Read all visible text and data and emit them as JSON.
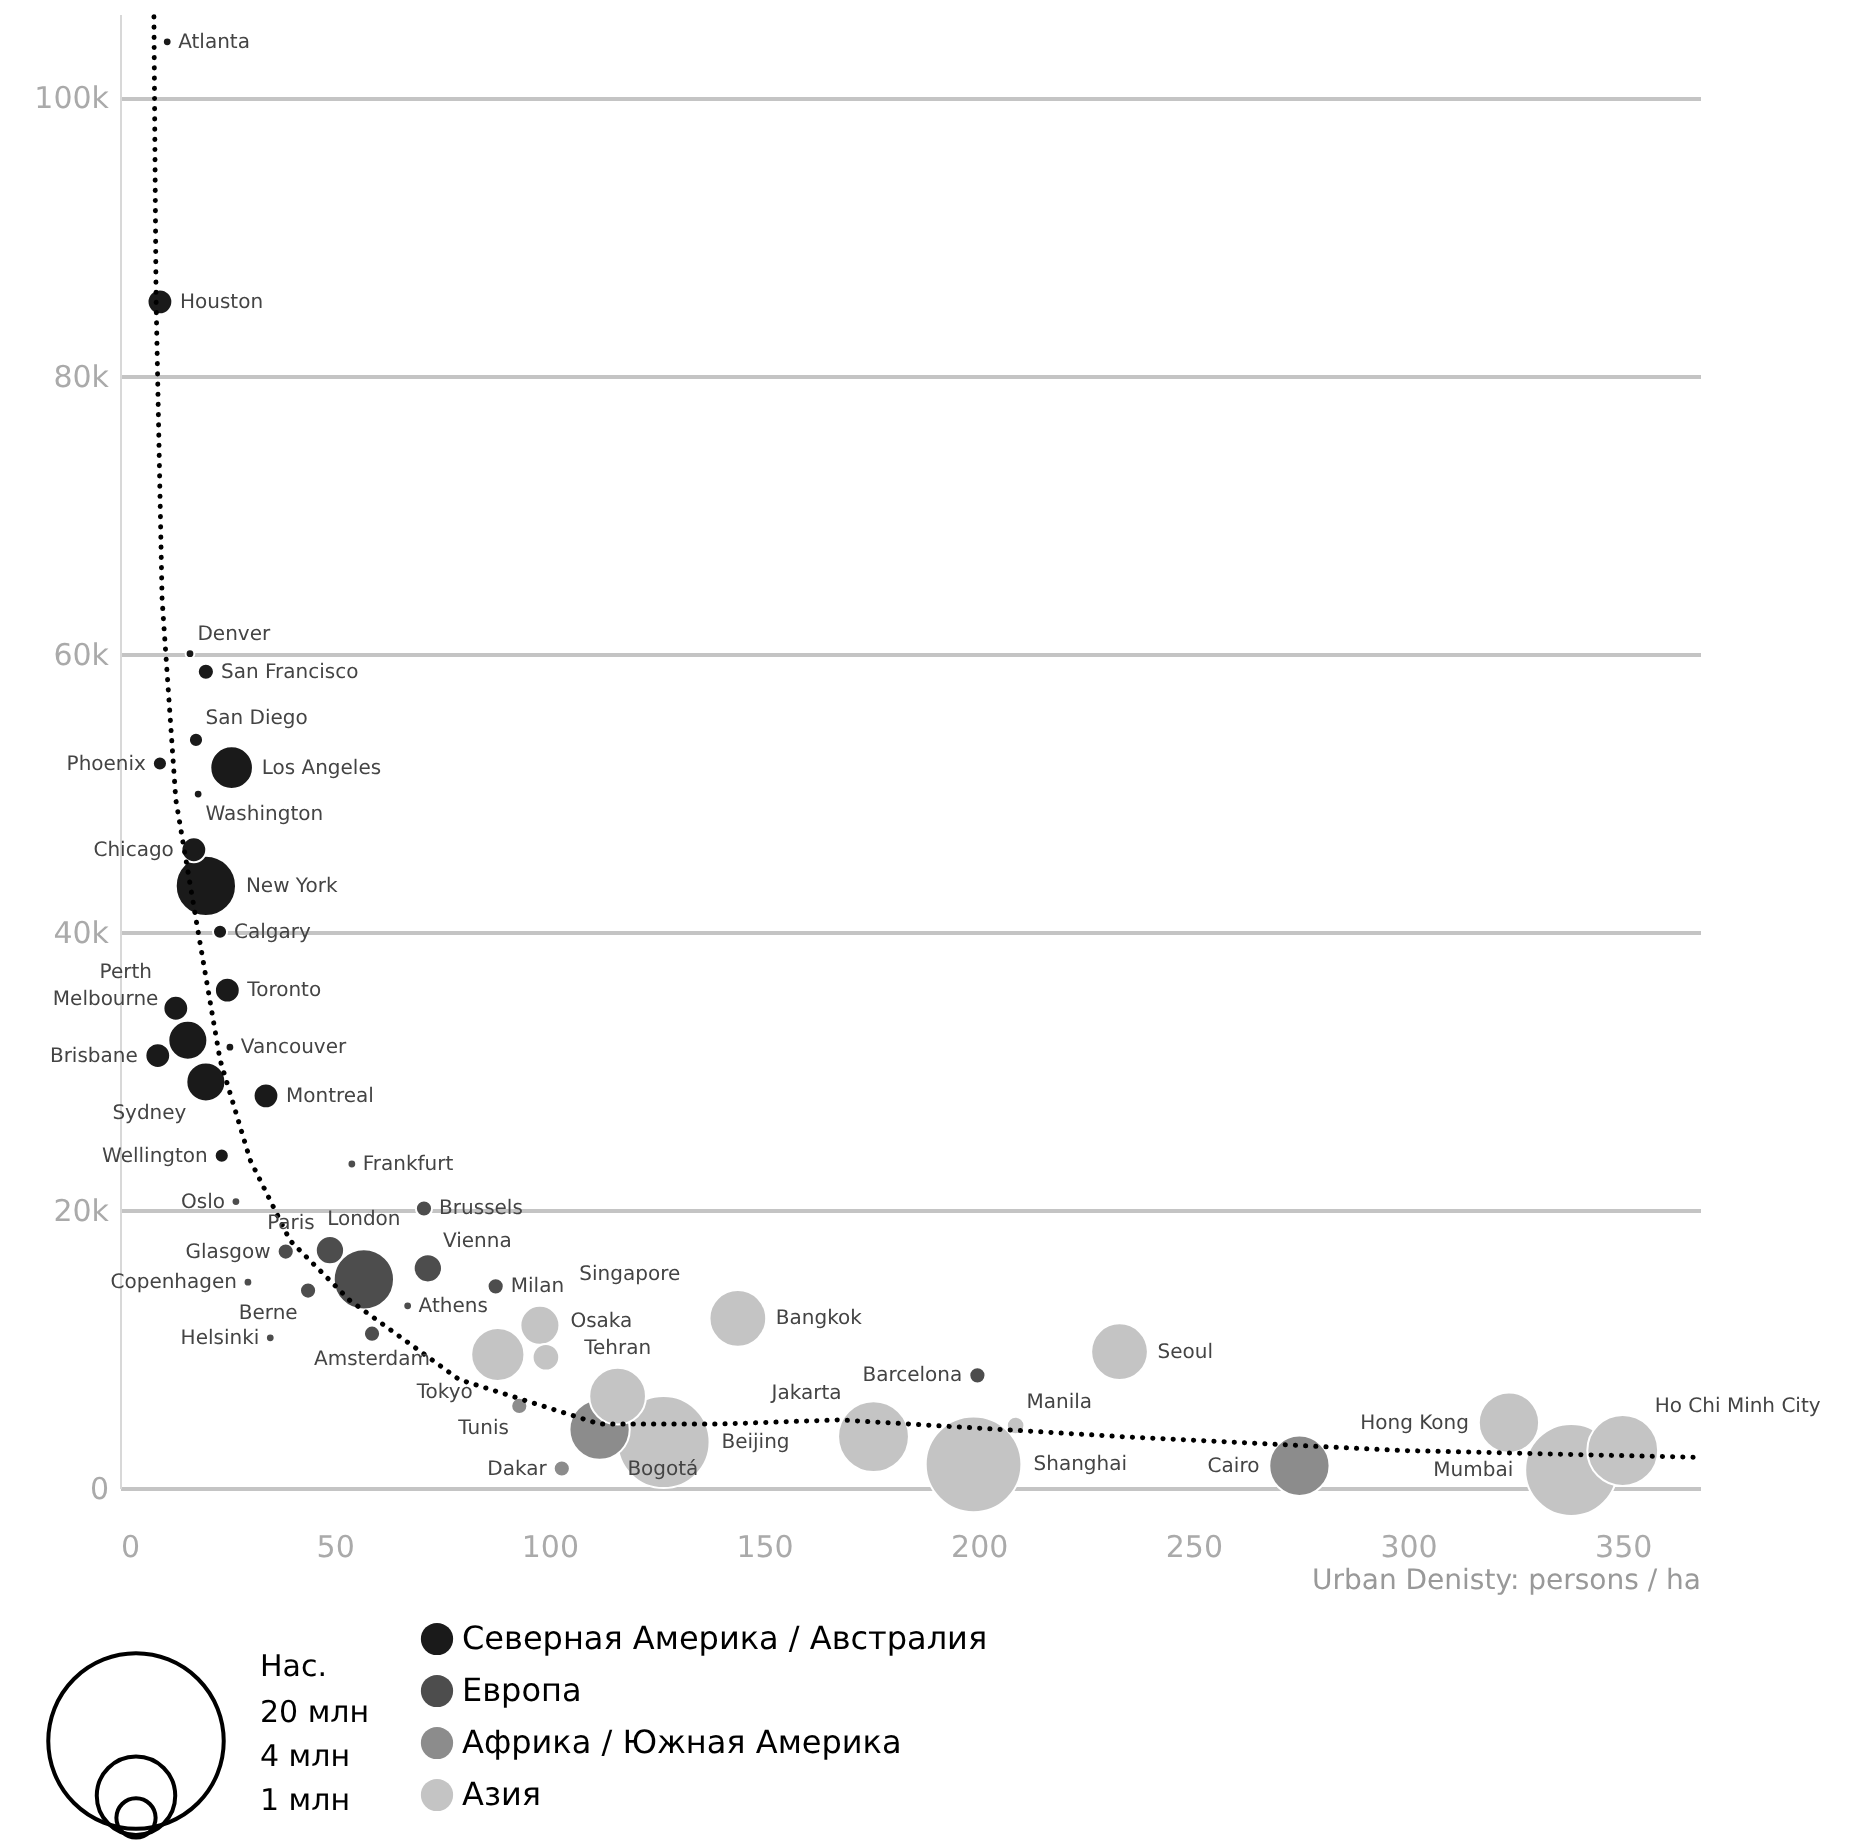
{
  "chart_data": {
    "type": "bubble",
    "xlabel": "Urban Denisty: persons / ha",
    "xlim": [
      0,
      368
    ],
    "xticks": [
      0,
      50,
      100,
      150,
      200,
      250,
      300,
      350
    ],
    "ylim": [
      0,
      106000
    ],
    "yticks": [
      0,
      {
        "value": 20000,
        "label": "20k"
      },
      {
        "value": 40000,
        "label": "40k"
      },
      {
        "value": 60000,
        "label": "60k"
      },
      {
        "value": 80000,
        "label": "80k"
      },
      {
        "value": 100000,
        "label": "100k"
      }
    ],
    "grid": "y",
    "legend": "bottom left",
    "legend_title": "Нас.",
    "size_legend": [
      {
        "value": 20,
        "label": "20 млн"
      },
      {
        "value": 4,
        "label": "4 млн"
      },
      {
        "value": 1,
        "label": "1 млн"
      }
    ],
    "series": [
      {
        "name": "Северная Америка / Австралия",
        "color": "#1a1a1a",
        "x": [
          11,
          9.3,
          16.3,
          20,
          17.7,
          9.3,
          26,
          18.2,
          17.2,
          20,
          23.3,
          25,
          13,
          15.8,
          8.8,
          25.6,
          20,
          34,
          23.7
        ],
        "values": [
          104000,
          85300,
          60000,
          58700,
          53800,
          52100,
          51800,
          49900,
          45900,
          43300,
          40000,
          35800,
          34500,
          32200,
          31100,
          31700,
          29200,
          28200,
          23900
        ],
        "sizes": [
          0.05,
          0.4,
          0.05,
          0.17,
          0.13,
          0.13,
          1.18,
          0.05,
          0.4,
          2.36,
          0.13,
          0.4,
          0.4,
          0.99,
          0.4,
          0.05,
          0.99,
          0.4,
          0.13
        ]
      },
      {
        "name": "Европа",
        "color": "#4d4d4d",
        "x": [
          27,
          54,
          70.8,
          38.6,
          48.9,
          56.8,
          71.7,
          29.8,
          43.8,
          87.5,
          67,
          35,
          58.7,
          199.7
        ],
        "values": [
          20600,
          23300,
          20100,
          17000,
          17100,
          15000,
          15800,
          14800,
          14200,
          14500,
          13100,
          10800,
          11100,
          8100
        ],
        "sizes": [
          0.05,
          0.05,
          0.17,
          0.17,
          0.52,
          2.36,
          0.52,
          0.05,
          0.17,
          0.17,
          0.05,
          0.05,
          0.17,
          0.17
        ]
      },
      {
        "name": "Африка / Южная Америка",
        "color": "#8c8c8c",
        "x": [
          93,
          111.7,
          102.9,
          274.7
        ],
        "values": [
          5900,
          4200,
          1400,
          1600
        ],
        "sizes": [
          0.17,
          2.36,
          0.17,
          2.36
        ]
      },
      {
        "name": "Азия",
        "color": "#c4c4c4",
        "x": [
          88,
          97.8,
          99.2,
          115.9,
          126.6,
          143.9,
          175.5,
          198.8,
          208.6,
          232.8,
          323.5,
          338,
          350
        ],
        "values": [
          9600,
          11700,
          9400,
          6600,
          3300,
          12200,
          3700,
          1700,
          4500,
          9800,
          4700,
          1300,
          2700
        ],
        "sizes": [
          1.84,
          0.99,
          0.46,
          2.09,
          5.5,
          2.09,
          3.26,
          5.95,
          0.2,
          2.09,
          2.36,
          5.5,
          3.26
        ]
      },
      {
        "type": "line",
        "color": "#000000",
        "line_style": "dotted",
        "marker": "none",
        "x": [
          7.9,
          8.4,
          9.8,
          13,
          17.7,
          23.3,
          30.3,
          39.6,
          53.5,
          79,
          111.7,
          139.7,
          167.6,
          233,
          298,
          367.8
        ],
        "values": [
          105800,
          85500,
          63900,
          49500,
          40900,
          30800,
          23600,
          17800,
          13500,
          7800,
          4600,
          4600,
          4900,
          3700,
          2700,
          2200
        ]
      }
    ],
    "annotations": [
      {
        "text": "Atlanta",
        "x": 11,
        "y": 104000
      },
      {
        "text": "Houston",
        "x": 9.3,
        "y": 85300
      },
      {
        "text": "Denver",
        "x": 16.3,
        "y": 60000
      },
      {
        "text": "San Francisco",
        "x": 20,
        "y": 58700
      },
      {
        "text": "San Diego",
        "x": 17.7,
        "y": 53800
      },
      {
        "text": "Phoenix",
        "x": 9.3,
        "y": 52100
      },
      {
        "text": "Los Angeles",
        "x": 26,
        "y": 51800
      },
      {
        "text": "Washington",
        "x": 18.2,
        "y": 49900
      },
      {
        "text": "Chicago",
        "x": 17.2,
        "y": 45900
      },
      {
        "text": "New York",
        "x": 20,
        "y": 43300
      },
      {
        "text": "Calgary",
        "x": 23.3,
        "y": 40000
      },
      {
        "text": "Toronto",
        "x": 25,
        "y": 35800
      },
      {
        "text": "Perth",
        "x": 13,
        "y": 34500
      },
      {
        "text": "Melbourne",
        "x": 15.8,
        "y": 32200
      },
      {
        "text": "Brisbane",
        "x": 8.8,
        "y": 31100
      },
      {
        "text": "Vancouver",
        "x": 25.6,
        "y": 31700
      },
      {
        "text": "Sydney",
        "x": 20,
        "y": 29200
      },
      {
        "text": "Montreal",
        "x": 34,
        "y": 28200
      },
      {
        "text": "Wellington",
        "x": 23.7,
        "y": 23900
      },
      {
        "text": "Oslo",
        "x": 27,
        "y": 20600
      },
      {
        "text": "Frankfurt",
        "x": 54,
        "y": 23300
      },
      {
        "text": "Brussels",
        "x": 70.8,
        "y": 20100
      },
      {
        "text": "Glasgow",
        "x": 38.6,
        "y": 17000
      },
      {
        "text": "Paris",
        "x": 48.9,
        "y": 17100
      },
      {
        "text": "London",
        "x": 56.8,
        "y": 15000
      },
      {
        "text": "Vienna",
        "x": 71.7,
        "y": 15800
      },
      {
        "text": "Copenhagen",
        "x": 29.8,
        "y": 14800
      },
      {
        "text": "Berne",
        "x": 43.8,
        "y": 14200
      },
      {
        "text": "Milan",
        "x": 87.5,
        "y": 14500
      },
      {
        "text": "Athens",
        "x": 67,
        "y": 13100
      },
      {
        "text": "Helsinki",
        "x": 35,
        "y": 10800
      },
      {
        "text": "Amsterdam",
        "x": 58.7,
        "y": 11100
      },
      {
        "text": "Barcelona",
        "x": 199.7,
        "y": 8100
      },
      {
        "text": "Tunis",
        "x": 93,
        "y": 5900
      },
      {
        "text": "Bogotá",
        "x": 111.7,
        "y": 4200
      },
      {
        "text": "Dakar",
        "x": 102.9,
        "y": 1400
      },
      {
        "text": "Cairo",
        "x": 274.7,
        "y": 1600
      },
      {
        "text": "Tokyo",
        "x": 88,
        "y": 9600
      },
      {
        "text": "Singapore",
        "x": 97.8,
        "y": 11700
      },
      {
        "text": "Osaka",
        "x": 99.2,
        "y": 9400
      },
      {
        "text": "Tehran",
        "x": 115.9,
        "y": 6600
      },
      {
        "text": "Beijing",
        "x": 126.6,
        "y": 3300
      },
      {
        "text": "Bangkok",
        "x": 143.9,
        "y": 12200
      },
      {
        "text": "Jakarta",
        "x": 175.5,
        "y": 3700
      },
      {
        "text": "Shanghai",
        "x": 198.8,
        "y": 1700
      },
      {
        "text": "Manila",
        "x": 208.6,
        "y": 4500
      },
      {
        "text": "Seoul",
        "x": 232.8,
        "y": 9800
      },
      {
        "text": "Hong Kong",
        "x": 323.5,
        "y": 4700
      },
      {
        "text": "Mumbai",
        "x": 338,
        "y": 1300
      },
      {
        "text": "Ho Chi Minh City",
        "x": 350,
        "y": 2700
      }
    ]
  }
}
